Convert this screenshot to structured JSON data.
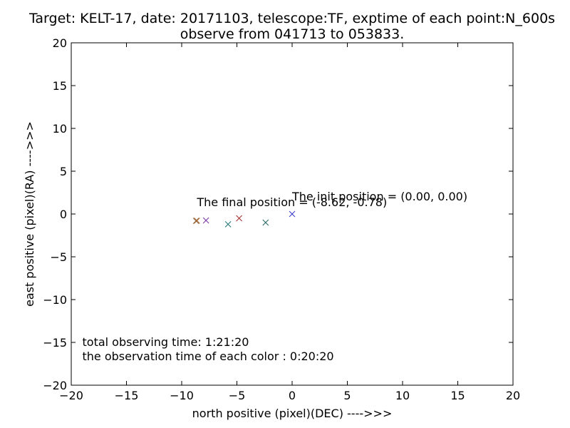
{
  "chart_data": {
    "type": "scatter",
    "title_line1": "Target: KELT-17, date: 20171103, telescope:TF, exptime of each point:N_600s",
    "title_line2": "observe from 041713 to 053833.",
    "xlabel": "north positive (pixel)(DEC) ---->>>",
    "ylabel": "east positive (pixel)(RA) ---->>>",
    "xlim": [
      -20,
      20
    ],
    "ylim": [
      -20,
      20
    ],
    "xticks": [
      -20,
      -15,
      -10,
      -5,
      0,
      5,
      10,
      15,
      20
    ],
    "yticks": [
      -20,
      -15,
      -10,
      -5,
      0,
      5,
      10,
      15,
      20
    ],
    "xtick_labels": [
      "−20",
      "−15",
      "−10",
      "−5",
      "0",
      "5",
      "10",
      "15",
      "20"
    ],
    "ytick_labels": [
      "−20",
      "−15",
      "−10",
      "−5",
      "0",
      "5",
      "10",
      "15",
      "20"
    ],
    "grid": false,
    "marker": "x",
    "points": [
      {
        "x": 0.0,
        "y": 0.0,
        "color": "#3b3bcc"
      },
      {
        "x": -2.4,
        "y": -1.0,
        "color": "#2a6a6a"
      },
      {
        "x": -4.8,
        "y": -0.5,
        "color": "#aa3333"
      },
      {
        "x": -5.8,
        "y": -1.2,
        "color": "#2a7a7a"
      },
      {
        "x": -7.8,
        "y": -0.75,
        "color": "#7a3aaa"
      },
      {
        "x": -8.7,
        "y": -0.8,
        "color": "#8a6a4a"
      },
      {
        "x": -8.62,
        "y": -0.78,
        "color": "#aa6633"
      }
    ],
    "annotations": [
      {
        "text": "The init position = (0.00, 0.00)",
        "x": 0.0,
        "y": 1.6
      },
      {
        "text": "The final position = (-8.62, -0.78)",
        "x": -8.62,
        "y": 0.9
      },
      {
        "text": "total observing time: 1:21:20",
        "x": -19,
        "y": -15.4
      },
      {
        "text": "the observation time of each color : 0:20:20",
        "x": -19,
        "y": -17.1
      }
    ]
  }
}
